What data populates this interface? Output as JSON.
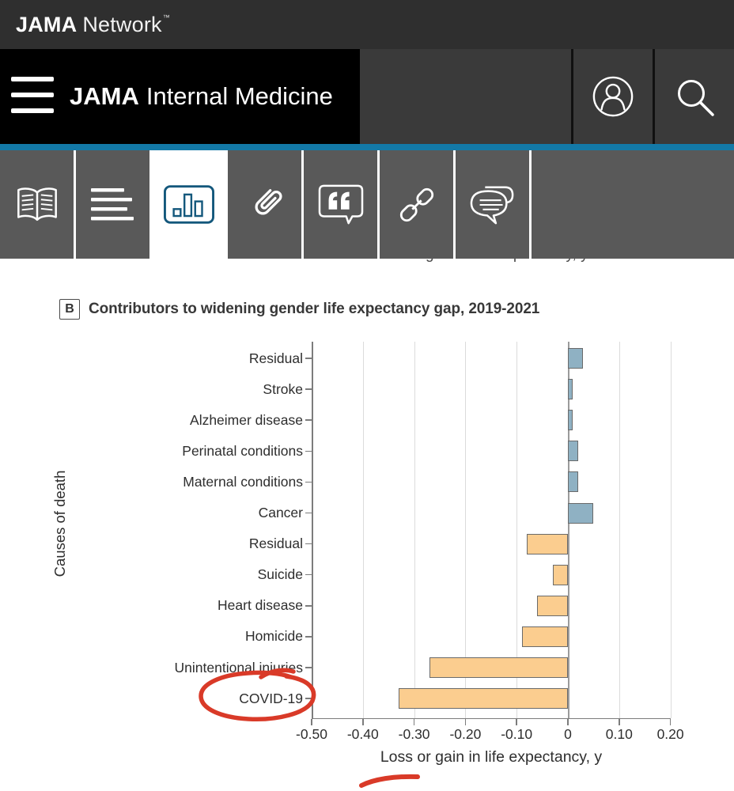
{
  "topbar": {
    "logo_bold": "JAMA",
    "logo_regular": "Network",
    "logo_tm": "™"
  },
  "header": {
    "title_bold": "JAMA",
    "title_regular": "Internal Medicine",
    "menu_icon": "hamburger-icon",
    "action_icons": [
      "profile-icon",
      "search-icon"
    ]
  },
  "toolbar": {
    "tabs": [
      {
        "icon": "book-icon",
        "active": false
      },
      {
        "icon": "text-lines-icon",
        "active": false
      },
      {
        "icon": "bar-chart-icon",
        "active": true
      },
      {
        "icon": "paperclip-icon",
        "active": false
      },
      {
        "icon": "quote-icon",
        "active": false
      },
      {
        "icon": "link-icon",
        "active": false
      },
      {
        "icon": "comments-icon",
        "active": false
      }
    ]
  },
  "occluded_axis_label": "Loss or gain in life expectancy, y",
  "panel": {
    "label": "B",
    "title": "Contributors to widening gender life expectancy gap, 2019-2021"
  },
  "chart_data": {
    "type": "bar",
    "orientation": "horizontal",
    "title": "Contributors to widening gender life expectancy gap, 2019-2021",
    "categories": [
      "Residual",
      "Stroke",
      "Alzheimer disease",
      "Perinatal conditions",
      "Maternal conditions",
      "Cancer",
      "Residual",
      "Suicide",
      "Heart disease",
      "Homicide",
      "Unintentional injuries",
      "COVID-19"
    ],
    "values": [
      0.03,
      0.01,
      0.01,
      0.02,
      0.02,
      0.05,
      -0.08,
      -0.03,
      -0.06,
      -0.09,
      -0.27,
      -0.33
    ],
    "xlabel": "Loss or gain in life expectancy, y",
    "ylabel": "Causes of death",
    "xlim": [
      -0.5,
      0.2
    ],
    "xticks": [
      "-0.50",
      "-0.40",
      "-0.30",
      "-0.20",
      "-0.10",
      "0",
      "0.10",
      "0.20"
    ],
    "xtick_values": [
      -0.5,
      -0.4,
      -0.3,
      -0.2,
      -0.1,
      0,
      0.1,
      0.2
    ],
    "grid": true,
    "legend": false,
    "positive_color": "#8FB1C3",
    "negative_color": "#FBCD8F",
    "annotations": [
      "hand-drawn red circle around COVID-19 label",
      "hand-drawn red underline below x-axis label"
    ]
  },
  "colors": {
    "topbar_gray": "#2F2F2F",
    "header_black": "#000000",
    "header_gray": "#3A3A3A",
    "accent_blue": "#1379A7",
    "toolbar_gray": "#595959",
    "active_icon_blue": "#14587C",
    "bar_positive": "#8FB1C3",
    "bar_negative": "#FBCD8F",
    "bar_border": "#6A6A6A",
    "axis": "#7C7C7C",
    "grid": "#DBDBDB",
    "text": "#2E2E2E",
    "annotation_red": "#D93A28"
  }
}
